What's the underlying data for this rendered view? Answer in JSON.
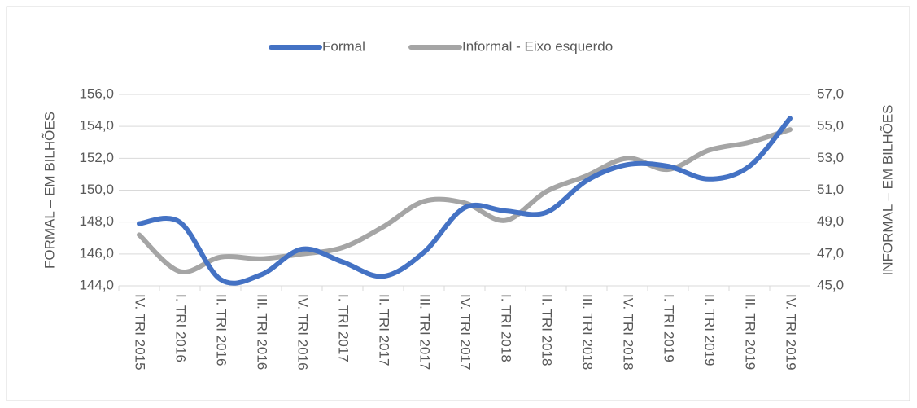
{
  "chart_data": {
    "type": "line",
    "categories": [
      "IV. TRI 2015",
      "I. TRI 2016",
      "II. TRI 2016",
      "III. TRI 2016",
      "IV. TRI 2016",
      "I. TRI 2017",
      "II. TRI 2017",
      "III. TRI 2017",
      "IV. TRI 2017",
      "I. TRI 2018",
      "II. TRI 2018",
      "III. TRI 2018",
      "IV. TRI 2018",
      "I. TRI 2019",
      "II. TRI 2019",
      "III. TRI 2019",
      "IV. TRI 2019"
    ],
    "series": [
      {
        "name": "Formal",
        "color": "#4472c4",
        "values": [
          147.9,
          148.0,
          144.4,
          144.7,
          146.3,
          145.5,
          144.6,
          146.1,
          148.9,
          148.7,
          148.6,
          150.6,
          151.6,
          151.5,
          150.7,
          151.5,
          154.5
        ]
      },
      {
        "name": "Informal - Eixo esquerdo",
        "color": "#a5a5a5",
        "axis": "y2",
        "values": [
          48.2,
          45.9,
          46.8,
          46.7,
          47.0,
          47.4,
          48.7,
          50.3,
          50.2,
          49.1,
          50.9,
          51.9,
          53.0,
          52.3,
          53.5,
          54.0,
          54.8
        ]
      }
    ],
    "ylabel": "FORMAL – EM BILHÕES",
    "y2label": "INFORMAL – EM BILHÕES",
    "ylim": [
      144,
      156
    ],
    "yticks": [
      {
        "value": 144,
        "label": "144,0"
      },
      {
        "value": 146,
        "label": "146,0"
      },
      {
        "value": 148,
        "label": "148,0"
      },
      {
        "value": 150,
        "label": "150,0"
      },
      {
        "value": 152,
        "label": "152,0"
      },
      {
        "value": 154,
        "label": "154,0"
      },
      {
        "value": 156,
        "label": "156,0"
      }
    ],
    "y2lim": [
      45,
      57
    ],
    "y2ticks": [
      {
        "value": 45,
        "label": "45,0"
      },
      {
        "value": 47,
        "label": "47,0"
      },
      {
        "value": 49,
        "label": "49,0"
      },
      {
        "value": 51,
        "label": "51,0"
      },
      {
        "value": 53,
        "label": "53,0"
      },
      {
        "value": 55,
        "label": "55,0"
      },
      {
        "value": 57,
        "label": "57,0"
      }
    ],
    "grid": true,
    "legend": "top"
  }
}
